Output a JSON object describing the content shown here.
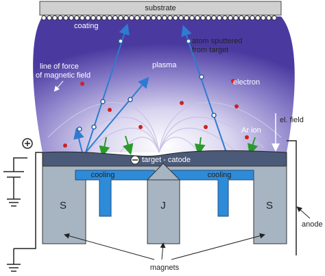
{
  "substrate": "substrate",
  "coating": "coating",
  "atom_sputtered": [
    "atom sputtered",
    "from target"
  ],
  "line_of_force": [
    "line of force",
    "of magnetic field"
  ],
  "plasma": "plasma",
  "electron": "electron",
  "el_field": "el. field",
  "ar_ion": "Ar ion",
  "target": "target - catode",
  "cooling": [
    "cooling",
    "cooling"
  ],
  "magnets_poles": [
    "S",
    "J",
    "S"
  ],
  "anode": "anode",
  "magnets": "magnets"
}
